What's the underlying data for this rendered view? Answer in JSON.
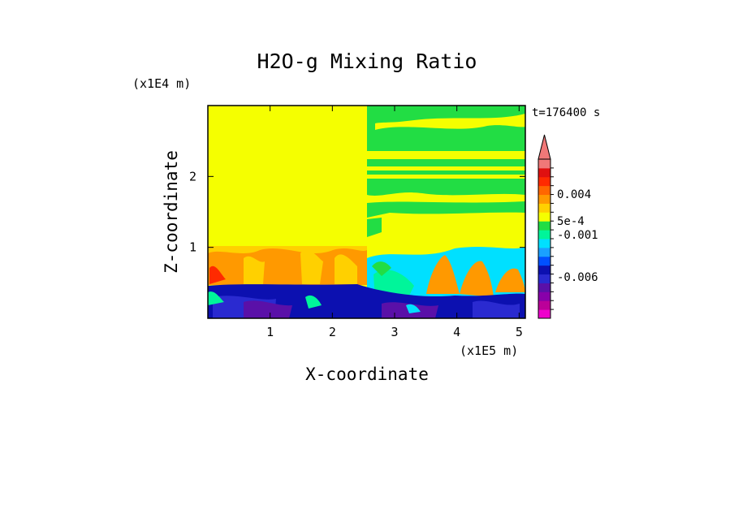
{
  "chart_data": {
    "type": "heatmap",
    "title": "H2O-g Mixing Ratio",
    "xlabel": "X-coordinate",
    "ylabel": "Z-coordinate",
    "x_unit": "(x1E5 m)",
    "y_unit": "(x1E4 m)",
    "time_label": "t=176400 s",
    "xlim": [
      0,
      5.1
    ],
    "ylim": [
      0,
      3.0
    ],
    "xticks": [
      "1",
      "2",
      "3",
      "4",
      "5"
    ],
    "yticks": [
      "1",
      "2"
    ],
    "colorbar": {
      "colors": [
        "#ee00cc",
        "#bb0099",
        "#8800aa",
        "#5a10a8",
        "#2a2ad0",
        "#0c10b0",
        "#0050ff",
        "#1aa0ff",
        "#00e0ff",
        "#00f59a",
        "#22dd44",
        "#f5ff00",
        "#ffd000",
        "#ff9900",
        "#ff6600",
        "#ff2a00",
        "#e01010",
        "#f07878"
      ],
      "labels": [
        "0.004",
        "5e-4",
        "-0.001",
        "-0.006"
      ],
      "extend": "max"
    },
    "regions": [
      {
        "name": "upper-left",
        "x": [
          0.0,
          2.55
        ],
        "z": [
          1.02,
          3.0
        ],
        "value_class": "yellow"
      },
      {
        "name": "upper-right",
        "x": [
          2.55,
          5.1
        ],
        "z": [
          1.0,
          3.0
        ],
        "value_class": "green-yellow bands"
      },
      {
        "name": "mid-left",
        "x": [
          0.0,
          2.55
        ],
        "z": [
          0.52,
          1.02
        ],
        "value_class": "orange-red plumes"
      },
      {
        "name": "mid-right",
        "x": [
          2.55,
          5.1
        ],
        "z": [
          0.35,
          1.0
        ],
        "value_class": "cyan-orange plumes"
      },
      {
        "name": "bottom",
        "x": [
          0.0,
          5.1
        ],
        "z": [
          0.0,
          0.52
        ],
        "value_class": "blue-purple"
      }
    ]
  }
}
